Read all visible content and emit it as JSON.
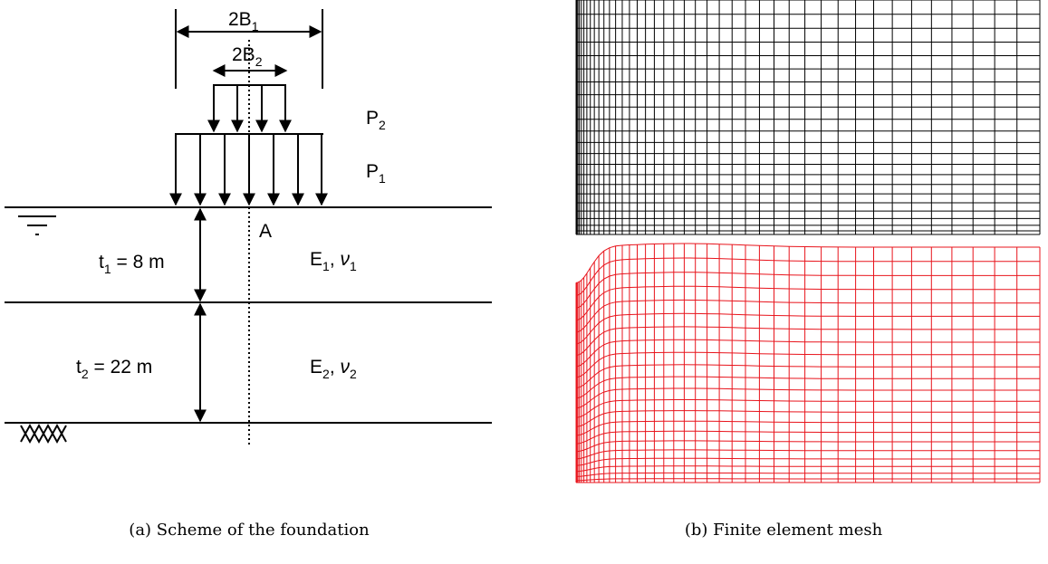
{
  "scheme": {
    "dim_outer": {
      "base": "2B",
      "sub": "1"
    },
    "dim_inner": {
      "base": "2B",
      "sub": "2"
    },
    "load_upper": {
      "base": "P",
      "sub": "2"
    },
    "load_lower": {
      "base": "P",
      "sub": "1"
    },
    "point": "A",
    "layer1_thickness": {
      "base": "t",
      "sub": "1",
      "rest": " = 8 m"
    },
    "layer2_thickness": {
      "base": "t",
      "sub": "2",
      "rest": " = 22 m"
    },
    "layer1_props": {
      "e": "E",
      "e_sub": "1",
      "sep": ", ",
      "nu": "ν",
      "nu_sub": "1"
    },
    "layer2_props": {
      "e": "E",
      "e_sub": "2",
      "sep": ", ",
      "nu": "ν",
      "nu_sub": "2"
    }
  },
  "captions": {
    "a": "(a) Scheme of the foundation",
    "b": "(b) Finite element mesh"
  },
  "mesh": {
    "undeformed_color": "#000000",
    "deformed_color": "#e8141c"
  }
}
